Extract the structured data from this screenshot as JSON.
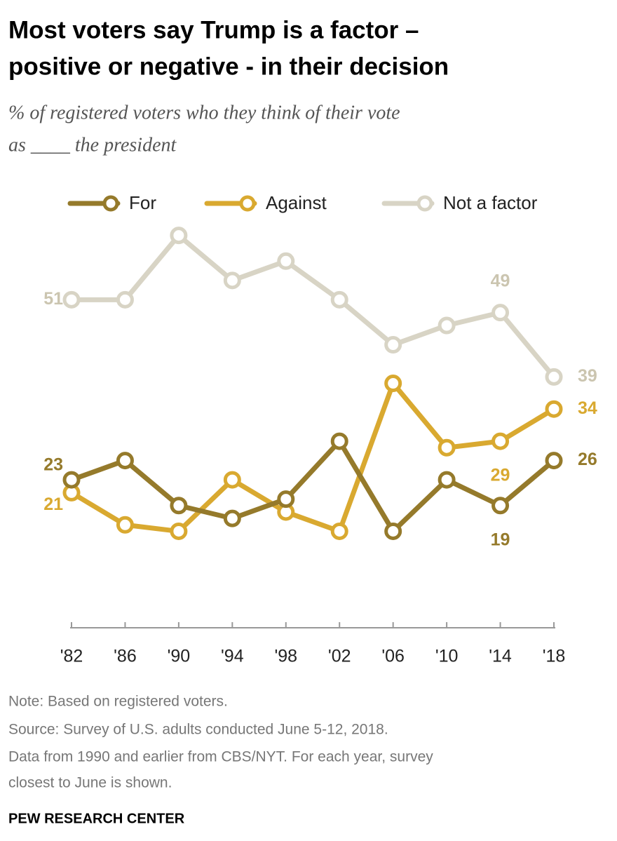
{
  "chart_data": {
    "type": "line",
    "title_lines": [
      "Most voters say Trump is a factor –",
      "positive or negative - in their decision"
    ],
    "subtitle_lines": [
      "% of registered voters who they think of their vote",
      "as ____ the president"
    ],
    "categories": [
      "'82",
      "'86",
      "'90",
      "'94",
      "'98",
      "'02",
      "'06",
      "'10",
      "'14",
      "'18"
    ],
    "series": [
      {
        "name": "For",
        "color": "#957a2b",
        "values": [
          23,
          26,
          19,
          17,
          20,
          29,
          15,
          23,
          19,
          26
        ],
        "labeled": [
          0,
          8,
          9
        ]
      },
      {
        "name": "Against",
        "color": "#d9a930",
        "values": [
          21,
          16,
          15,
          23,
          18,
          15,
          38,
          28,
          29,
          34
        ],
        "labeled": [
          0,
          8,
          9
        ]
      },
      {
        "name": "Not a factor",
        "color": "#d8d4c5",
        "values": [
          51,
          51,
          61,
          54,
          57,
          51,
          44,
          47,
          49,
          39
        ],
        "labeled": [
          0,
          8,
          9
        ]
      }
    ],
    "ylim": [
      0,
      65
    ],
    "notes": [
      "Note: Based on registered voters.",
      "Source: Survey of U.S. adults conducted June 5-12, 2018.",
      "Data from 1990 and earlier from CBS/NYT. For each year, survey",
      "closest to June is shown."
    ],
    "source": "PEW RESEARCH CENTER"
  }
}
